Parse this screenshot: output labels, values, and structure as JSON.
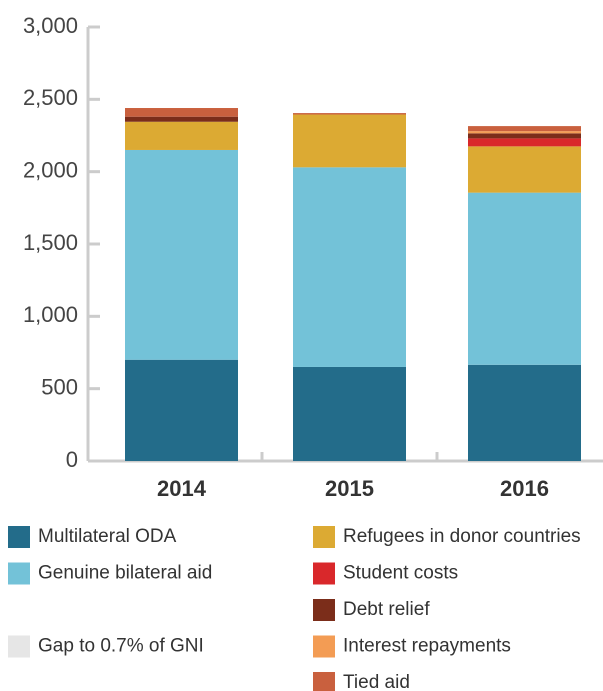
{
  "chart_data": {
    "type": "stacked_bar",
    "categories": [
      "2014",
      "2015",
      "2016"
    ],
    "series": [
      {
        "name": "Multilateral ODA",
        "color": "#236c8a",
        "values": [
          700,
          650,
          665
        ]
      },
      {
        "name": "Genuine bilateral aid",
        "color": "#73c2d8",
        "values": [
          1450,
          1380,
          1190
        ]
      },
      {
        "name": "Refugees in donor countries",
        "color": "#dcaa33",
        "values": [
          195,
          365,
          320
        ]
      },
      {
        "name": "Student costs",
        "color": "#d9282b",
        "values": [
          0,
          0,
          55
        ]
      },
      {
        "name": "Debt relief",
        "color": "#7b2d1a",
        "values": [
          35,
          0,
          35
        ]
      },
      {
        "name": "Interest repayments",
        "color": "#f39c54",
        "values": [
          0,
          0,
          15
        ]
      },
      {
        "name": "Tied aid",
        "color": "#c9603e",
        "values": [
          60,
          10,
          35
        ]
      },
      {
        "name": "Gap to 0.7% of GNI",
        "color": "#e6e6e6",
        "values": [
          0,
          0,
          0
        ]
      }
    ],
    "ylim": [
      0,
      3000
    ],
    "yticks": [
      0,
      500,
      {
        "value": 1000,
        "label": "1,000"
      },
      {
        "value": 1500,
        "label": "1,500"
      },
      {
        "value": 2000,
        "label": "2,000"
      },
      {
        "value": 2500,
        "label": "2,500"
      },
      {
        "value": 3000,
        "label": "3,000"
      }
    ]
  }
}
